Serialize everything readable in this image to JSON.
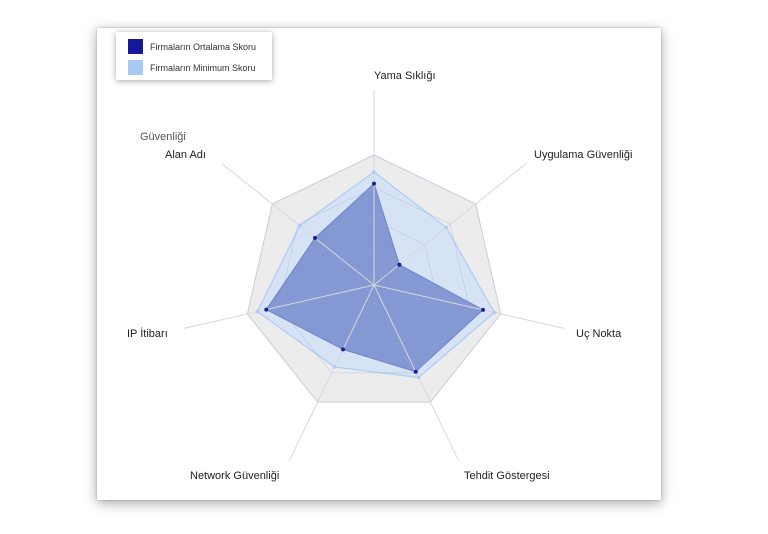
{
  "chart_data": {
    "type": "radar",
    "categories": [
      "Yama Sıklığı",
      "Uygulama Güvenliği",
      "Uç Nokta",
      "Tehdit Göstergesi",
      "Network Güvenliği",
      "IP İtibarı",
      "Alan Adı"
    ],
    "extra_label": "Güvenliği",
    "rmax": 100,
    "grid_levels": 4,
    "series": [
      {
        "name": "Firmaların Ortalama Skoru",
        "values": [
          78,
          25,
          86,
          74,
          55,
          85,
          58
        ],
        "fill": "#7b8fd0",
        "point": "#1c1f94",
        "swatch": "#14189a"
      },
      {
        "name": "Firmaların Minimum Skoru",
        "values": [
          87,
          71,
          95,
          79,
          70,
          92,
          73
        ],
        "fill": "#d4e2f6",
        "point": "#aecbf2",
        "swatch": "#a7c9f3"
      }
    ],
    "background_polygon_color": "#ececec",
    "grid": true,
    "legend_position": "top-left"
  }
}
